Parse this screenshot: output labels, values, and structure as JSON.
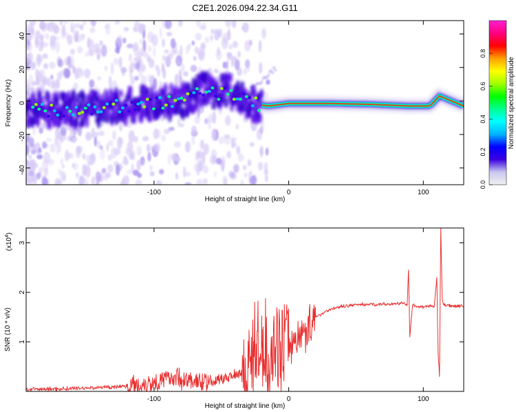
{
  "title": "C2E1.2026.094.22.34.G11",
  "chart_data": [
    {
      "type": "heatmap",
      "xlabel": "Height of straight line (km)",
      "ylabel": "Frequency (Hz)",
      "xlim": [
        -195,
        130
      ],
      "ylim": [
        -50,
        48
      ],
      "xticks": [
        -100,
        0,
        100
      ],
      "yticks": [
        -40,
        -20,
        0,
        20,
        40
      ],
      "colorbar": {
        "label": "Normalized spectral amplitude",
        "range": [
          0,
          1
        ],
        "ticks": [
          "0.0",
          "0.2",
          "0.4",
          "0.6",
          "0.8"
        ],
        "tick_values": [
          0.0,
          0.2,
          0.4,
          0.6,
          0.8
        ],
        "colors": [
          "#f0f0f0",
          "#c8c8f0",
          "#3a00e0",
          "#0000ff",
          "#00b4ff",
          "#00ffff",
          "#00ff90",
          "#00ff00",
          "#a0ff00",
          "#ffff00",
          "#ffa000",
          "#ff0000",
          "#ff0080",
          "#ff20d0"
        ]
      },
      "ridge": [
        {
          "x": -195,
          "f": -5
        },
        {
          "x": -170,
          "f": -6
        },
        {
          "x": -140,
          "f": -4
        },
        {
          "x": -110,
          "f": -2
        },
        {
          "x": -90,
          "f": -1
        },
        {
          "x": -75,
          "f": 1
        },
        {
          "x": -62,
          "f": 8
        },
        {
          "x": -55,
          "f": 4
        },
        {
          "x": -45,
          "f": 6
        },
        {
          "x": -35,
          "f": 2
        },
        {
          "x": -25,
          "f": -2
        },
        {
          "x": -15,
          "f": -3
        },
        {
          "x": 0,
          "f": -1.5
        },
        {
          "x": 30,
          "f": -1.5
        },
        {
          "x": 60,
          "f": -2
        },
        {
          "x": 90,
          "f": -3
        },
        {
          "x": 105,
          "f": -3
        },
        {
          "x": 112,
          "f": 3
        },
        {
          "x": 130,
          "f": -3
        }
      ]
    },
    {
      "type": "line",
      "xlabel": "Height of straight line (km)",
      "ylabel": "SNR (10 * v/v)",
      "scale_label": "(x10",
      "scale_exp": "4",
      "scale_close": ")",
      "xlim": [
        -195,
        130
      ],
      "ylim": [
        0,
        3.3
      ],
      "xticks": [
        -100,
        0,
        100
      ],
      "yticks": [
        1,
        2,
        3
      ],
      "color": "#e83030",
      "series": [
        {
          "name": "SNR",
          "x": [
            -195,
            -170,
            -150,
            -130,
            -110,
            -95,
            -85,
            -75,
            -65,
            -55,
            -45,
            -35,
            -30,
            -25,
            -20,
            -15,
            -10,
            -5,
            0,
            5,
            10,
            15,
            20,
            30,
            40,
            50,
            60,
            70,
            80,
            85,
            88,
            89,
            90,
            92,
            95,
            100,
            105,
            108,
            110,
            111,
            112,
            113,
            114,
            115,
            120,
            130
          ],
          "y": [
            0.04,
            0.05,
            0.07,
            0.09,
            0.13,
            0.22,
            0.3,
            0.22,
            0.18,
            0.2,
            0.3,
            0.4,
            0.55,
            0.8,
            0.9,
            0.75,
            0.9,
            0.95,
            0.95,
            1.05,
            1.15,
            1.3,
            1.5,
            1.65,
            1.72,
            1.75,
            1.76,
            1.76,
            1.77,
            1.78,
            1.76,
            2.45,
            1.1,
            1.75,
            1.7,
            1.7,
            1.72,
            1.7,
            2.3,
            0.8,
            0.3,
            3.3,
            1.9,
            1.75,
            1.73,
            1.72
          ]
        }
      ],
      "noise": [
        {
          "x0": -195,
          "x1": -120,
          "amp": 0.05
        },
        {
          "x0": -120,
          "x1": -60,
          "amp": 0.25
        },
        {
          "x0": -60,
          "x1": -35,
          "amp": 0.15
        },
        {
          "x0": -35,
          "x1": 0,
          "amp": 1.1
        },
        {
          "x0": 0,
          "x1": 20,
          "amp": 0.5
        },
        {
          "x0": 20,
          "x1": 130,
          "amp": 0.04
        }
      ]
    }
  ]
}
